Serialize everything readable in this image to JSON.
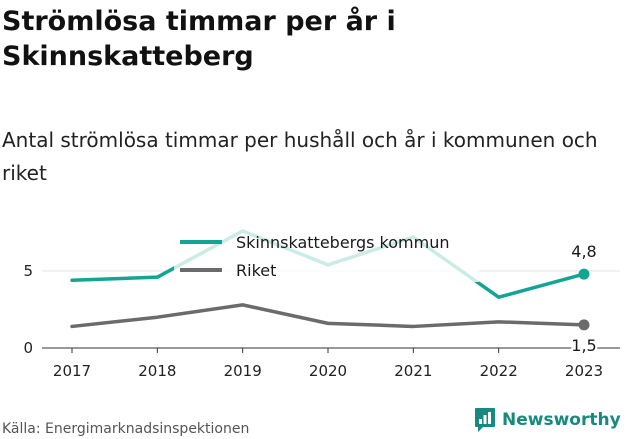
{
  "title": "Strömlösa timmar per år i Skinnskatteberg",
  "subtitle": "Antal strömlösa timmar per hushåll och år i kommunen och riket",
  "source": "Källa: Energimarknadsinspektionen",
  "brand": "Newsworthy",
  "brand_icon": "newsworthy-logo-icon",
  "colors": {
    "kommun": "#12a594",
    "riket": "#6b6b6e",
    "grid": "#e4e4e4",
    "brand": "#17897e"
  },
  "chart_data": {
    "type": "line",
    "x": [
      "2017",
      "2018",
      "2019",
      "2020",
      "2021",
      "2022",
      "2023"
    ],
    "series": [
      {
        "name": "Skinnskattebergs kommun",
        "values": [
          4.4,
          4.6,
          7.6,
          5.4,
          7.2,
          3.3,
          4.8
        ]
      },
      {
        "name": "Riket",
        "values": [
          1.4,
          2.0,
          2.8,
          1.6,
          1.4,
          1.7,
          1.5
        ]
      }
    ],
    "end_labels": [
      "4,8",
      "1,5"
    ],
    "yticks": [
      "0",
      "5"
    ],
    "ytick_values": [
      0,
      5
    ],
    "ylim": [
      0,
      8.5
    ],
    "grid": true,
    "legend_position": "top-center",
    "xlabel": "",
    "ylabel": ""
  }
}
